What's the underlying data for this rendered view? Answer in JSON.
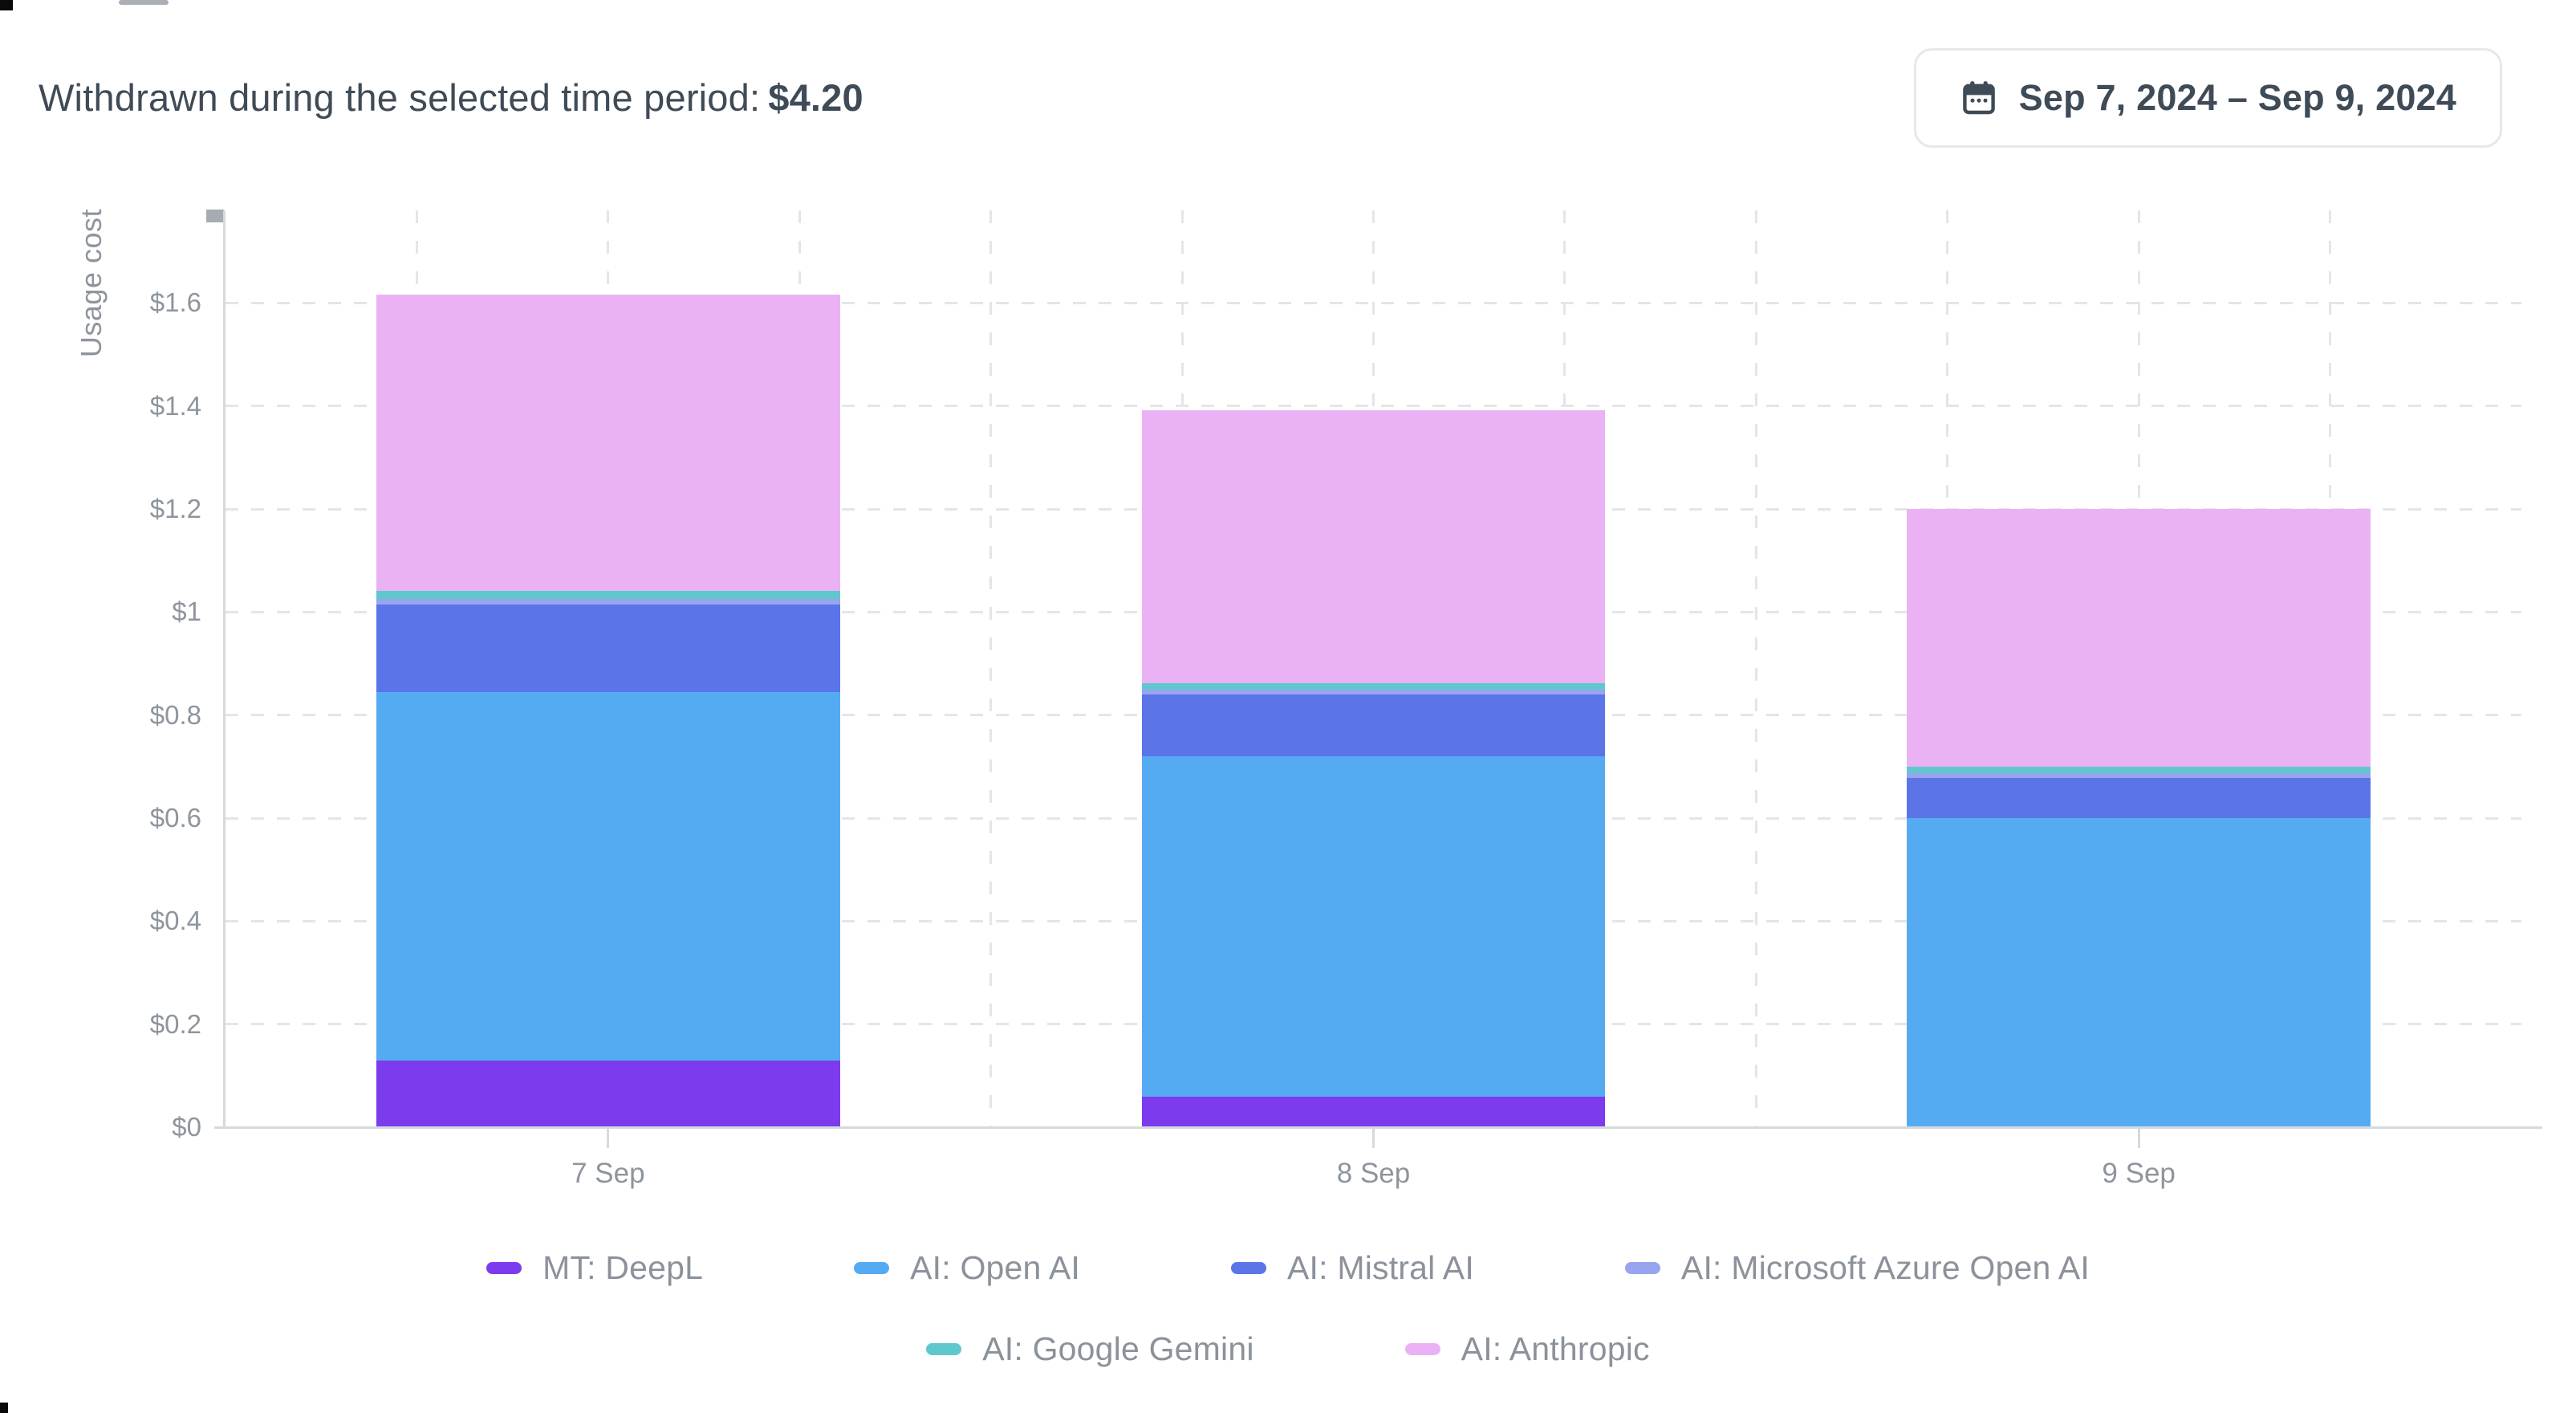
{
  "header": {
    "title_prefix": "Withdrawn during the selected time period:",
    "total_amount": "$4.20",
    "date_range": "Sep 7, 2024 – Sep 9, 2024",
    "calendar_icon": "calendar-icon"
  },
  "chart_data": {
    "type": "bar",
    "stacked": true,
    "title": "",
    "xlabel": "",
    "ylabel": "Usage cost",
    "categories": [
      "7 Sep",
      "8 Sep",
      "9 Sep"
    ],
    "series": [
      {
        "name": "MT: DeepL",
        "color": "#7C3BEC",
        "values": [
          0.13,
          0.06,
          0
        ]
      },
      {
        "name": "AI: Open AI",
        "color": "#55ABF2",
        "values": [
          0.715,
          0.66,
          0.6
        ]
      },
      {
        "name": "AI: Mistral AI",
        "color": "#5B74E8",
        "values": [
          0.17,
          0.12,
          0.078
        ]
      },
      {
        "name": "AI: Microsoft Azure Open AI",
        "color": "#98A4EE",
        "values": [
          0.01,
          0.01,
          0.009
        ]
      },
      {
        "name": "AI: Google Gemini",
        "color": "#5FC8CE",
        "values": [
          0.016,
          0.012,
          0.013
        ]
      },
      {
        "name": "AI: Anthropic",
        "color": "#EAB2F4",
        "values": [
          0.575,
          0.53,
          0.5
        ]
      }
    ],
    "bar_totals": [
      1.616,
      1.392,
      1.2
    ],
    "ylim": [
      0,
      1.78
    ],
    "y_ticks": [
      {
        "value": 0,
        "label": "$0"
      },
      {
        "value": 0.2,
        "label": "$0.2"
      },
      {
        "value": 0.4,
        "label": "$0.4"
      },
      {
        "value": 0.6,
        "label": "$0.6"
      },
      {
        "value": 0.8,
        "label": "$0.8"
      },
      {
        "value": 1.0,
        "label": "$1"
      },
      {
        "value": 1.2,
        "label": "$1.2"
      },
      {
        "value": 1.4,
        "label": "$1.4"
      },
      {
        "value": 1.6,
        "label": "$1.6"
      }
    ],
    "grid": "dashed horizontal and vertical gridlines",
    "legend_position": "bottom",
    "legend_rows": [
      4,
      2
    ]
  }
}
